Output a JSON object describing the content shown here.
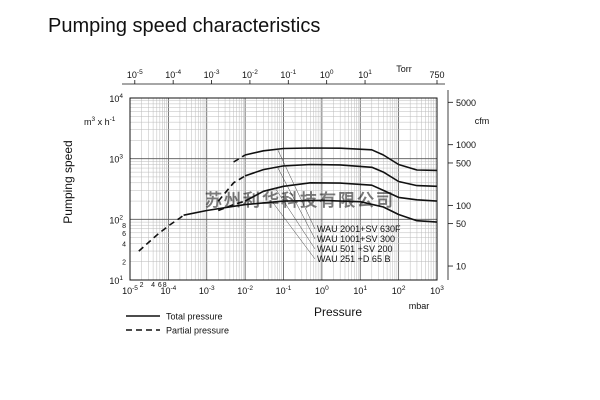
{
  "title": "Pumping speed characteristics",
  "chart_data": {
    "type": "line",
    "scale": "log-log",
    "grid": true,
    "xlabel": "Pressure",
    "xunit": "mbar",
    "xlim": [
      1e-05,
      1000
    ],
    "x_ticks": [
      {
        "base": "10",
        "exp": "-5"
      },
      {
        "base": "10",
        "exp": "-4"
      },
      {
        "base": "10",
        "exp": "-3"
      },
      {
        "base": "10",
        "exp": "-2"
      },
      {
        "base": "10",
        "exp": "-1"
      },
      {
        "base": "10",
        "exp": "0"
      },
      {
        "base": "10",
        "exp": "1"
      },
      {
        "base": "10",
        "exp": "2"
      },
      {
        "base": "10",
        "exp": "3"
      }
    ],
    "x_minor_labels": [
      "2",
      "4",
      "6",
      "8"
    ],
    "ylabel": "Pumping speed",
    "yunit_base": "m",
    "yunit_exp": "3",
    "yunit_rest": "x h",
    "yunit_exp2": "-1",
    "ylim": [
      10,
      10000
    ],
    "y_ticks": [
      {
        "base": "10",
        "exp": "1"
      },
      {
        "base": "10",
        "exp": "2"
      },
      {
        "base": "10",
        "exp": "3"
      },
      {
        "base": "10",
        "exp": "4"
      }
    ],
    "y_minor_labels": [
      "2",
      "4",
      "6",
      "8"
    ],
    "top_axis_unit": "Torr",
    "top_ticks": [
      {
        "base": "10",
        "exp": "-5"
      },
      {
        "base": "10",
        "exp": "-4"
      },
      {
        "base": "10",
        "exp": "-3"
      },
      {
        "base": "10",
        "exp": "-2"
      },
      {
        "base": "10",
        "exp": "-1"
      },
      {
        "base": "10",
        "exp": "0"
      },
      {
        "base": "10",
        "exp": "1"
      },
      {
        "base": "",
        "exp": "",
        "text": "750"
      }
    ],
    "right_axis_unit": "cfm",
    "right_ticks": [
      "5000",
      "1000",
      "500",
      "100",
      "50",
      "10"
    ],
    "legend": [
      {
        "label": "Total pressure",
        "style": "solid"
      },
      {
        "label": "Partial pressure",
        "style": "dashed"
      }
    ],
    "series_labels": [
      "WAU 2001+SV 630F",
      "WAU 1001+SV 300",
      "WAU 501  +SV 200",
      "WAU 251  +D 65 B"
    ],
    "series": [
      {
        "name": "WAU 2001+SV 630F",
        "total": [
          [
            0.01,
            1150
          ],
          [
            0.03,
            1350
          ],
          [
            0.1,
            1470
          ],
          [
            0.5,
            1500
          ],
          [
            3,
            1490
          ],
          [
            20,
            1400
          ],
          [
            40,
            1150
          ],
          [
            100,
            800
          ],
          [
            300,
            650
          ],
          [
            1000,
            640
          ]
        ],
        "partial": [
          [
            0.005,
            880
          ],
          [
            0.01,
            1150
          ]
        ]
      },
      {
        "name": "WAU 1001+SV 300",
        "total": [
          [
            0.01,
            520
          ],
          [
            0.03,
            660
          ],
          [
            0.1,
            760
          ],
          [
            0.5,
            800
          ],
          [
            3,
            790
          ],
          [
            20,
            720
          ],
          [
            40,
            600
          ],
          [
            100,
            420
          ],
          [
            300,
            360
          ],
          [
            1000,
            350
          ]
        ],
        "partial": [
          [
            0.002,
            200
          ],
          [
            0.005,
            400
          ],
          [
            0.01,
            520
          ]
        ]
      },
      {
        "name": "WAU 501  +SV 200",
        "total": [
          [
            0.01,
            200
          ],
          [
            0.03,
            290
          ],
          [
            0.1,
            350
          ],
          [
            0.5,
            400
          ],
          [
            3,
            395
          ],
          [
            20,
            365
          ],
          [
            40,
            300
          ],
          [
            100,
            230
          ],
          [
            300,
            210
          ],
          [
            1000,
            200
          ]
        ],
        "partial": [
          [
            0.002,
            140
          ],
          [
            0.005,
            175
          ],
          [
            0.01,
            200
          ]
        ]
      },
      {
        "name": "WAU 251  +D 65 B",
        "total": [
          [
            0.00025,
            117
          ],
          [
            0.001,
            140
          ],
          [
            0.01,
            175
          ],
          [
            0.1,
            200
          ],
          [
            1,
            205
          ],
          [
            10,
            195
          ],
          [
            40,
            160
          ],
          [
            100,
            120
          ],
          [
            300,
            95
          ],
          [
            1000,
            90
          ]
        ],
        "partial": [
          [
            1.7e-05,
            30
          ],
          [
            5e-05,
            55
          ],
          [
            0.0001,
            78
          ],
          [
            0.0002,
            105
          ],
          [
            0.00025,
            117
          ]
        ]
      }
    ],
    "watermark": "苏州利华科技有限公司"
  }
}
